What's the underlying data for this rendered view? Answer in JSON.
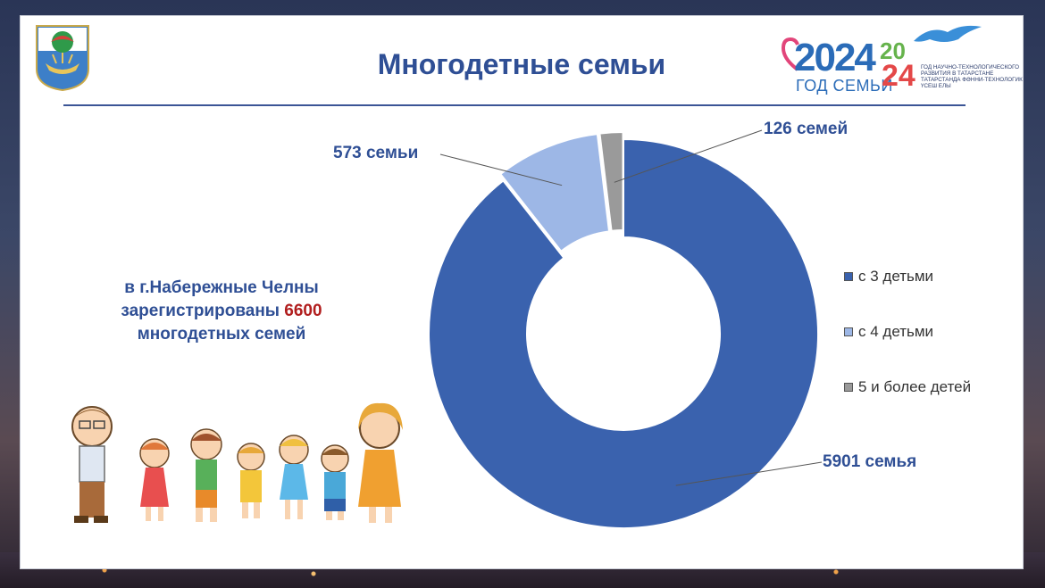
{
  "slide": {
    "title": "Многодетные семьи",
    "caption_line1": "в г.Набережные Челны",
    "caption_line2_prefix": "зарегистрированы ",
    "caption_total": "6600",
    "caption_line3": "многодетных семей"
  },
  "logos": {
    "year_number": "2024",
    "year_subtitle": "ГОД СЕМЬИ",
    "tech_top": "20",
    "tech_bottom": "24",
    "tech_lines": [
      "ГОД НАУЧНО-ТЕХНОЛОГИЧЕСКОГО",
      "РАЗВИТИЯ В ТАТАРСТАНЕ",
      "ТАТАРСТАНДА ФӘННИ-ТЕХНОЛОГИК",
      "ҮСЕШ ЕЛЫ"
    ]
  },
  "chart_data": {
    "type": "pie",
    "donut": true,
    "categories": [
      "с 3 детьми",
      "с 4 детьми",
      "5 и более детей"
    ],
    "values": [
      5901,
      573,
      126
    ],
    "data_labels": [
      "5901 семья",
      "573 семьи",
      "126 семей"
    ],
    "colors": [
      "#3a62ae",
      "#9db7e6",
      "#9a9a9a"
    ],
    "legend_position": "right"
  }
}
